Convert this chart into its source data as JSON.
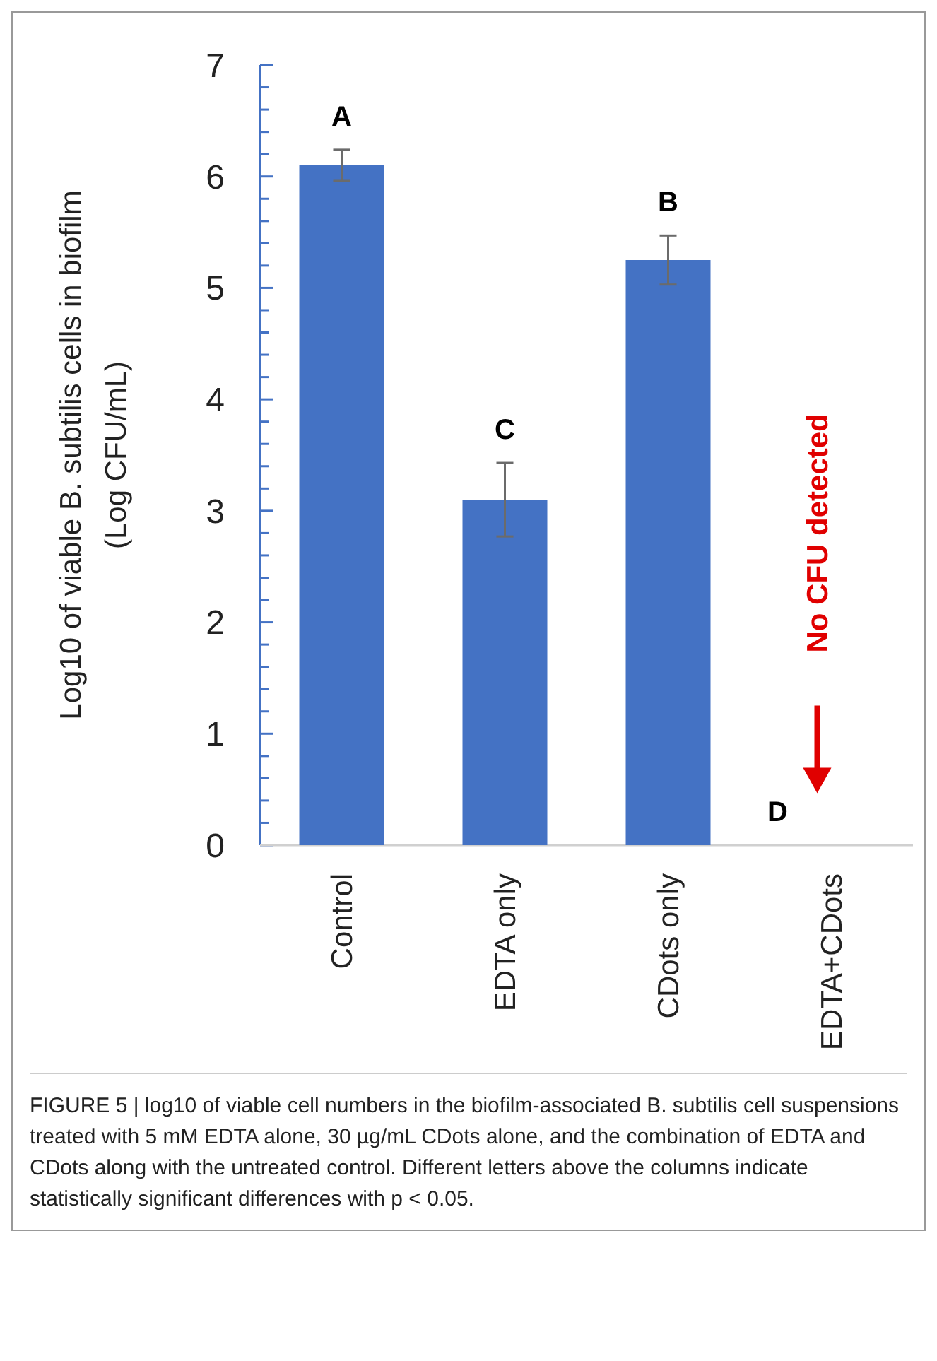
{
  "chart_data": {
    "type": "bar",
    "ylabel": "Log10 of viable B. subtilis cells in biofilm\n(Log CFU/mL)",
    "categories": [
      "Control",
      "EDTA only",
      "CDots only",
      "EDTA+CDots"
    ],
    "values": [
      6.1,
      3.1,
      5.25,
      0
    ],
    "errors": [
      0.14,
      0.33,
      0.22,
      null
    ],
    "color": "#4472c4",
    "ylim": [
      0,
      7
    ],
    "yticks": [
      0,
      {
        "value": 0.2,
        "label": null
      },
      {
        "value": 0.4,
        "label": null
      },
      {
        "value": 0.6,
        "label": null
      },
      {
        "value": 0.8,
        "label": null
      },
      1,
      {
        "value": 1.2,
        "label": null
      },
      {
        "value": 1.4,
        "label": null
      },
      {
        "value": 1.6,
        "label": null
      },
      {
        "value": 1.8,
        "label": null
      },
      2,
      {
        "value": 2.2,
        "label": null
      },
      {
        "value": 2.4,
        "label": null
      },
      {
        "value": 2.6,
        "label": null
      },
      {
        "value": 2.8,
        "label": null
      },
      3,
      {
        "value": 3.2,
        "label": null
      },
      {
        "value": 3.4,
        "label": null
      },
      {
        "value": 3.6,
        "label": null
      },
      {
        "value": 3.8,
        "label": null
      },
      4,
      {
        "value": 4.2,
        "label": null
      },
      {
        "value": 4.4,
        "label": null
      },
      {
        "value": 4.6,
        "label": null
      },
      {
        "value": 4.8,
        "label": null
      },
      5,
      {
        "value": 5.2,
        "label": null
      },
      {
        "value": 5.4,
        "label": null
      },
      {
        "value": 5.6,
        "label": null
      },
      {
        "value": 5.8,
        "label": null
      },
      6,
      {
        "value": 6.2,
        "label": null
      },
      {
        "value": 6.4,
        "label": null
      },
      {
        "value": 6.6,
        "label": null
      },
      {
        "value": 6.8,
        "label": null
      },
      7
    ],
    "annotations": [
      "A",
      "C",
      "B",
      "D",
      "No CFU detected",
      "FIGURE 5 | log10 of viable cell numbers in the biofilm-associated B. subtilis cell suspensions treated with 5 mM EDTA alone, 30 µg/mL CDots alone, and the combination of EDTA and CDots along with the untreated control. Different letters above the columns indicate statistically significant differences with p < 0.05."
    ]
  }
}
